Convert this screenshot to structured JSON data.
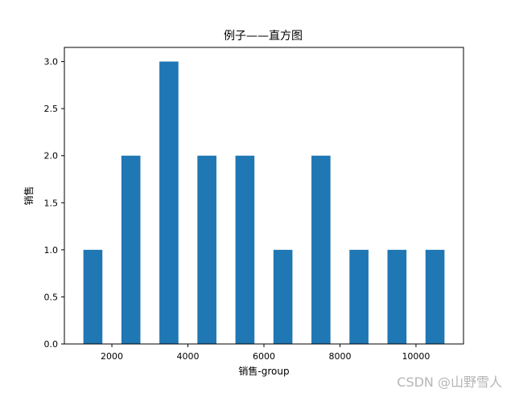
{
  "chart_data": {
    "type": "bar",
    "title": "例子——直方图",
    "xlabel": "销售-group",
    "ylabel": "销售",
    "bar_color": "#1f77b4",
    "bar_width": 500,
    "x": [
      1500,
      2500,
      3500,
      4500,
      5500,
      6500,
      7500,
      8500,
      9500,
      10500
    ],
    "values": [
      1,
      2,
      3,
      2,
      2,
      1,
      2,
      1,
      1,
      1
    ],
    "xlim": [
      750,
      11250
    ],
    "ylim": [
      0,
      3.15
    ],
    "xticks": [
      2000,
      4000,
      6000,
      8000,
      10000
    ],
    "xtick_labels": [
      "2000",
      "4000",
      "6000",
      "8000",
      "10000"
    ],
    "yticks": [
      0,
      0.5,
      1,
      1.5,
      2,
      2.5,
      3
    ],
    "ytick_labels": [
      "0.0",
      "0.5",
      "1.0",
      "1.5",
      "2.0",
      "2.5",
      "3.0"
    ],
    "grid": false,
    "legend": "none"
  },
  "watermark": "CSDN @山野雪人"
}
